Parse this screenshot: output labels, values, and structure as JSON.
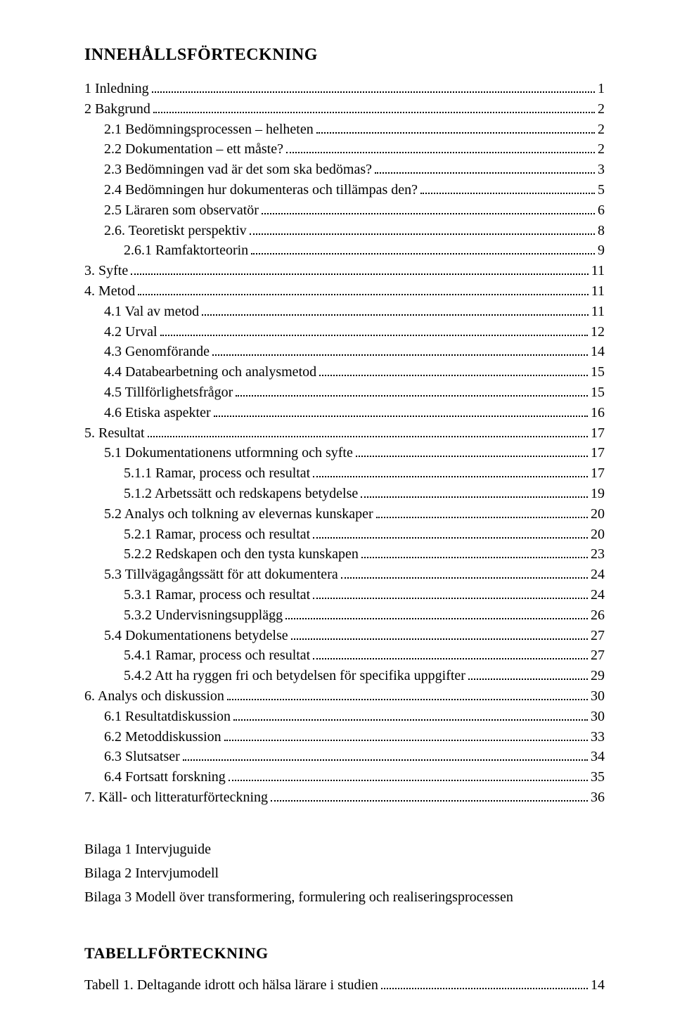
{
  "heading": "INNEHÅLLSFÖRTECKNING",
  "toc": [
    {
      "label": "1 Inledning",
      "page": "1",
      "indent": 0
    },
    {
      "label": "2 Bakgrund",
      "page": "2",
      "indent": 0
    },
    {
      "label": "2.1 Bedömningsprocessen – helheten",
      "page": "2",
      "indent": 1
    },
    {
      "label": "2.2 Dokumentation – ett måste?",
      "page": "2",
      "indent": 1
    },
    {
      "label": "2.3 Bedömningen vad är det som ska bedömas?",
      "page": "3",
      "indent": 1
    },
    {
      "label": "2.4 Bedömningen hur dokumenteras och tillämpas den?",
      "page": "5",
      "indent": 1
    },
    {
      "label": "2.5 Läraren som observatör",
      "page": "6",
      "indent": 1
    },
    {
      "label": "2.6. Teoretiskt perspektiv",
      "page": "8",
      "indent": 1
    },
    {
      "label": "2.6.1 Ramfaktorteorin",
      "page": "9",
      "indent": 2
    },
    {
      "label": "3. Syfte",
      "page": "11",
      "indent": 0
    },
    {
      "label": "4. Metod",
      "page": "11",
      "indent": 0
    },
    {
      "label": "4.1 Val av metod",
      "page": "11",
      "indent": 1
    },
    {
      "label": "4.2 Urval",
      "page": "12",
      "indent": 1
    },
    {
      "label": "4.3 Genomförande",
      "page": "14",
      "indent": 1
    },
    {
      "label": "4.4 Databearbetning och analysmetod",
      "page": "15",
      "indent": 1
    },
    {
      "label": "4.5 Tillförlighetsfrågor",
      "page": "15",
      "indent": 1
    },
    {
      "label": "4.6 Etiska aspekter",
      "page": "16",
      "indent": 1
    },
    {
      "label": "5. Resultat",
      "page": "17",
      "indent": 0
    },
    {
      "label": "5.1 Dokumentationens utformning och syfte",
      "page": "17",
      "indent": 1
    },
    {
      "label": "5.1.1 Ramar, process och resultat",
      "page": "17",
      "indent": 2
    },
    {
      "label": "5.1.2 Arbetssätt och redskapens betydelse",
      "page": "19",
      "indent": 2
    },
    {
      "label": "5.2 Analys och tolkning av elevernas kunskaper",
      "page": "20",
      "indent": 1
    },
    {
      "label": "5.2.1 Ramar, process och resultat",
      "page": "20",
      "indent": 2
    },
    {
      "label": "5.2.2 Redskapen och den tysta kunskapen",
      "page": "23",
      "indent": 2
    },
    {
      "label": "5.3 Tillvägagångssätt för att dokumentera",
      "page": "24",
      "indent": 1
    },
    {
      "label": "5.3.1 Ramar, process och resultat",
      "page": "24",
      "indent": 2
    },
    {
      "label": "5.3.2 Undervisningsupplägg",
      "page": "26",
      "indent": 2
    },
    {
      "label": "5.4 Dokumentationens betydelse",
      "page": "27",
      "indent": 1
    },
    {
      "label": "5.4.1 Ramar, process och resultat",
      "page": "27",
      "indent": 2
    },
    {
      "label": "5.4.2 Att ha ryggen fri och betydelsen för specifika uppgifter",
      "page": "29",
      "indent": 2
    },
    {
      "label": "6. Analys och diskussion",
      "page": "30",
      "indent": 0
    },
    {
      "label": "6.1 Resultatdiskussion",
      "page": "30",
      "indent": 1
    },
    {
      "label": "6.2 Metoddiskussion",
      "page": "33",
      "indent": 1
    },
    {
      "label": "6.3 Slutsatser",
      "page": "34",
      "indent": 1
    },
    {
      "label": "6.4 Fortsatt forskning",
      "page": "35",
      "indent": 1
    },
    {
      "label": "7. Käll- och litteraturförteckning",
      "page": "36",
      "indent": 0
    }
  ],
  "appendices": [
    "Bilaga 1 Intervjuguide",
    "Bilaga 2 Intervjumodell",
    "Bilaga 3 Modell över transformering, formulering och realiseringsprocessen"
  ],
  "tables_heading": "TABELLFÖRTECKNING",
  "tables": [
    {
      "label": "Tabell 1. Deltagande idrott och hälsa lärare i studien",
      "page": "14",
      "indent": 0
    }
  ]
}
